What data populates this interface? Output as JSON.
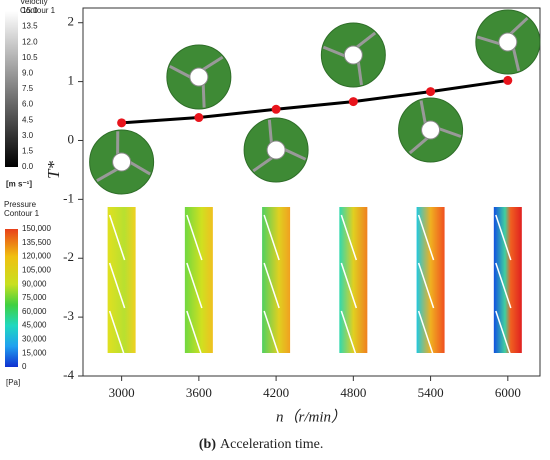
{
  "chart_data": {
    "type": "line",
    "x_label": "n（r/min）",
    "y_label": "T*",
    "x": [
      3000,
      3600,
      4200,
      4800,
      5400,
      6000
    ],
    "xlim": [
      2700,
      6250
    ],
    "xticks": [
      3000,
      3600,
      4200,
      4800,
      5400,
      6000
    ],
    "ylim": [
      -4,
      2.25
    ],
    "yticks": [
      -4,
      -3,
      -2,
      -1,
      0,
      1,
      2
    ],
    "series": [
      {
        "color": "#000000",
        "marker_color": "#e8141c",
        "values": [
          0.3,
          0.39,
          0.53,
          0.66,
          0.83,
          1.02
        ]
      }
    ],
    "caption_label": "(b)",
    "caption_text": "Acceleration time.",
    "colorbars": [
      {
        "title": "Velocity",
        "subtitle": "Contour 1",
        "labels": [
          "15.0",
          "13.5",
          "12.0",
          "10.5",
          "9.0",
          "7.5",
          "6.0",
          "4.5",
          "3.0",
          "1.5",
          "0.0"
        ],
        "unit": "[m s⁻¹]"
      },
      {
        "title": "Pressure",
        "subtitle": "Contour 1",
        "labels": [
          "150,000",
          "135,500",
          "120,000",
          "105,000",
          "90,000",
          "75,000",
          "60,000",
          "45,000",
          "30,000",
          "15,000",
          "0"
        ],
        "unit": "[Pa]"
      }
    ]
  }
}
